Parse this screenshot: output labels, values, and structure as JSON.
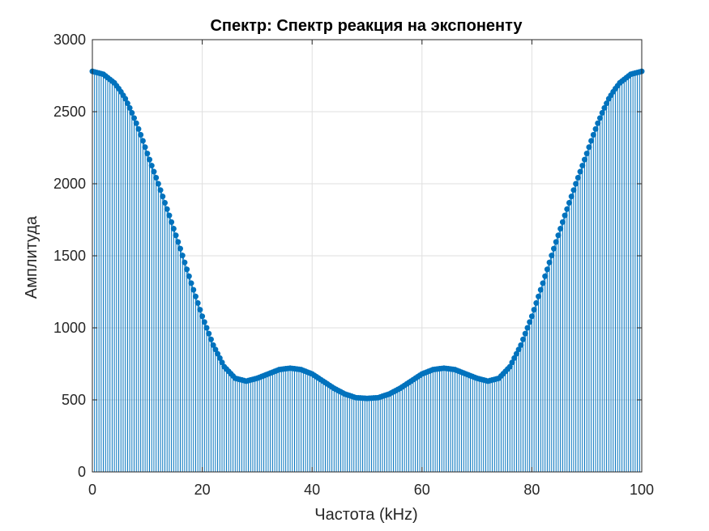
{
  "chart_data": {
    "type": "stem",
    "title": "Спектр: Спектр реакция на экспоненту",
    "xlabel": "Частота (kHz)",
    "ylabel": "Амплитуда",
    "xlim": [
      0,
      100
    ],
    "ylim": [
      0,
      3000
    ],
    "x_ticks": [
      "0",
      "20",
      "40",
      "60",
      "80",
      "100"
    ],
    "y_ticks": [
      "0",
      "500",
      "1000",
      "1500",
      "2000",
      "2500",
      "3000"
    ],
    "grid": true,
    "series": [
      {
        "color": "#0072bd",
        "marker": "circle-filled",
        "x": [
          0,
          1,
          2,
          3,
          4,
          5,
          6,
          7,
          8,
          9,
          10,
          12,
          14,
          16,
          18,
          20,
          22,
          24,
          26,
          28,
          30,
          32,
          34,
          36,
          38,
          40,
          42,
          44,
          46,
          48,
          50,
          52,
          54,
          56,
          58,
          60,
          62,
          64,
          66,
          68,
          70,
          72,
          74,
          76,
          78,
          80,
          82,
          84,
          86,
          88,
          90,
          91,
          92,
          93,
          94,
          95,
          96,
          97,
          98,
          99,
          100
        ],
        "y": [
          2780,
          2770,
          2760,
          2730,
          2700,
          2650,
          2590,
          2510,
          2420,
          2320,
          2210,
          2000,
          1780,
          1550,
          1310,
          1080,
          880,
          730,
          650,
          630,
          650,
          680,
          710,
          720,
          710,
          680,
          630,
          580,
          540,
          515,
          510,
          515,
          540,
          580,
          630,
          680,
          710,
          720,
          710,
          680,
          650,
          630,
          650,
          730,
          880,
          1080,
          1310,
          1550,
          1780,
          2000,
          2210,
          2320,
          2420,
          2510,
          2590,
          2650,
          2700,
          2730,
          2760,
          2770,
          2780
        ]
      }
    ]
  }
}
